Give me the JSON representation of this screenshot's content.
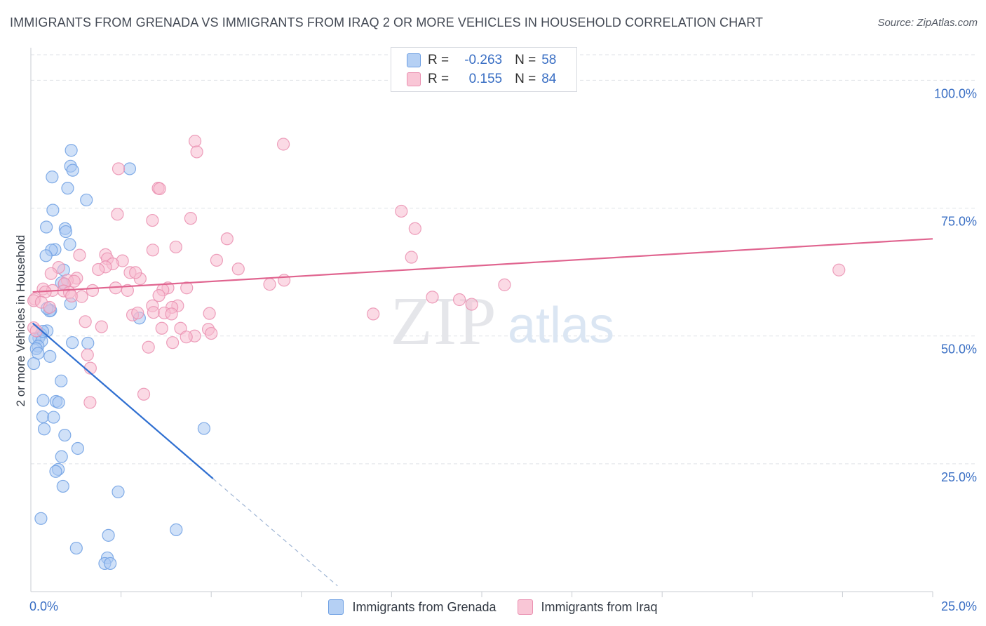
{
  "title": "IMMIGRANTS FROM GRENADA VS IMMIGRANTS FROM IRAQ 2 OR MORE VEHICLES IN HOUSEHOLD CORRELATION CHART",
  "source": "Source: ZipAtlas.com",
  "watermark": {
    "zip": "ZIP",
    "atlas": "atlas"
  },
  "colors": {
    "grenada_fill": "#a9c9f3",
    "grenada_stroke": "#6d9fe3",
    "grenada_line": "#2f6fd1",
    "iraq_fill": "#f7bcd0",
    "iraq_stroke": "#ea8fb0",
    "iraq_line": "#e0648f",
    "axis_label": "#3a6fc4",
    "grid": "#dfe2e7"
  },
  "legend": {
    "rows": [
      {
        "r_label": "R =",
        "r_value": "-0.263",
        "n_label": "N =",
        "n_value": "58"
      },
      {
        "r_label": "R =",
        "r_value": "0.155",
        "n_label": "N =",
        "n_value": "84"
      }
    ]
  },
  "chart_data": {
    "type": "scatter",
    "title": "IMMIGRANTS FROM GRENADA VS IMMIGRANTS FROM IRAQ 2 OR MORE VEHICLES IN HOUSEHOLD CORRELATION CHART",
    "xlabel": "",
    "ylabel": "2 or more Vehicles in Household",
    "xlim": [
      0,
      25
    ],
    "ylim": [
      0,
      105
    ],
    "x_tick_labels": [
      {
        "value": 0,
        "label": "0.0%"
      },
      {
        "value": 25,
        "label": "25.0%"
      }
    ],
    "y_tick_labels": [
      {
        "value": 25,
        "label": "25.0%"
      },
      {
        "value": 50,
        "label": "50.0%"
      },
      {
        "value": 75,
        "label": "75.0%"
      },
      {
        "value": 100,
        "label": "100.0%"
      }
    ],
    "x_minor_ticks": [
      2.5,
      5,
      7.5,
      10,
      12.5,
      15,
      17.5,
      20,
      22.5,
      25
    ],
    "grid": true,
    "legend_position": "top-center",
    "series": [
      {
        "name": "Immigrants from Grenada",
        "r": -0.263,
        "n": 58,
        "trend": {
          "x0": 0.05,
          "y0": 52.5,
          "x1": 5.05,
          "y1": 22.1,
          "dash_to_x": 8.5
        },
        "points": [
          [
            1.12,
            86.3
          ],
          [
            1.1,
            83.2
          ],
          [
            1.16,
            82.4
          ],
          [
            2.74,
            82.7
          ],
          [
            0.59,
            81.1
          ],
          [
            1.02,
            78.9
          ],
          [
            1.54,
            76.6
          ],
          [
            0.61,
            74.6
          ],
          [
            0.43,
            71.3
          ],
          [
            0.95,
            71.0
          ],
          [
            0.97,
            70.4
          ],
          [
            1.08,
            67.9
          ],
          [
            0.67,
            66.9
          ],
          [
            0.57,
            66.8
          ],
          [
            0.42,
            65.7
          ],
          [
            0.91,
            62.9
          ],
          [
            0.92,
            60.1
          ],
          [
            1.1,
            56.3
          ],
          [
            0.55,
            55.0
          ],
          [
            0.52,
            54.9
          ],
          [
            3.01,
            53.5
          ],
          [
            0.45,
            51.0
          ],
          [
            0.28,
            50.3
          ],
          [
            0.22,
            49.6
          ],
          [
            0.11,
            49.5
          ],
          [
            0.3,
            49.0
          ],
          [
            1.15,
            48.7
          ],
          [
            1.58,
            48.6
          ],
          [
            0.2,
            48.0
          ],
          [
            0.15,
            47.5
          ],
          [
            0.2,
            46.6
          ],
          [
            0.53,
            46.0
          ],
          [
            0.08,
            44.6
          ],
          [
            0.84,
            41.2
          ],
          [
            0.34,
            37.4
          ],
          [
            0.7,
            37.2
          ],
          [
            0.77,
            37.0
          ],
          [
            0.33,
            34.2
          ],
          [
            0.63,
            34.1
          ],
          [
            4.8,
            31.9
          ],
          [
            0.37,
            31.8
          ],
          [
            0.94,
            30.6
          ],
          [
            1.3,
            28.0
          ],
          [
            0.85,
            26.4
          ],
          [
            0.76,
            23.9
          ],
          [
            0.69,
            23.5
          ],
          [
            0.89,
            20.6
          ],
          [
            2.42,
            19.5
          ],
          [
            0.28,
            14.3
          ],
          [
            4.03,
            12.1
          ],
          [
            2.15,
            11.0
          ],
          [
            1.26,
            8.5
          ],
          [
            2.12,
            6.6
          ],
          [
            2.05,
            5.5
          ],
          [
            2.2,
            5.5
          ],
          [
            0.85,
            60.4
          ],
          [
            0.45,
            55.4
          ],
          [
            0.33,
            50.9
          ]
        ]
      },
      {
        "name": "Immigrants from Iraq",
        "r": 0.155,
        "n": 84,
        "trend": {
          "x0": 0.05,
          "y0": 58.6,
          "x1": 25.0,
          "y1": 69.0
        },
        "points": [
          [
            4.55,
            88.1
          ],
          [
            7.0,
            87.5
          ],
          [
            4.6,
            86.0
          ],
          [
            2.43,
            82.7
          ],
          [
            3.53,
            78.9
          ],
          [
            3.57,
            78.8
          ],
          [
            10.27,
            74.4
          ],
          [
            2.4,
            73.8
          ],
          [
            4.43,
            73.0
          ],
          [
            3.37,
            72.6
          ],
          [
            10.65,
            71.0
          ],
          [
            5.44,
            69.0
          ],
          [
            4.02,
            67.4
          ],
          [
            3.38,
            66.8
          ],
          [
            2.07,
            65.9
          ],
          [
            1.35,
            65.8
          ],
          [
            2.12,
            65.1
          ],
          [
            10.55,
            65.4
          ],
          [
            5.15,
            64.8
          ],
          [
            2.54,
            64.7
          ],
          [
            2.27,
            64.1
          ],
          [
            0.77,
            63.4
          ],
          [
            2.07,
            63.5
          ],
          [
            5.75,
            63.1
          ],
          [
            1.87,
            63.0
          ],
          [
            22.4,
            62.9
          ],
          [
            2.75,
            62.4
          ],
          [
            0.56,
            62.2
          ],
          [
            1.27,
            61.3
          ],
          [
            3.03,
            61.2
          ],
          [
            1.01,
            60.9
          ],
          [
            7.02,
            60.9
          ],
          [
            1.2,
            60.7
          ],
          [
            0.93,
            60.2
          ],
          [
            6.62,
            60.1
          ],
          [
            13.13,
            60.0
          ],
          [
            3.8,
            59.4
          ],
          [
            4.32,
            59.4
          ],
          [
            0.34,
            59.2
          ],
          [
            2.35,
            59.4
          ],
          [
            3.66,
            59.0
          ],
          [
            0.6,
            58.9
          ],
          [
            0.91,
            58.8
          ],
          [
            1.71,
            58.9
          ],
          [
            2.68,
            58.9
          ],
          [
            0.4,
            58.6
          ],
          [
            1.07,
            58.5
          ],
          [
            1.13,
            57.8
          ],
          [
            1.41,
            57.7
          ],
          [
            3.55,
            57.9
          ],
          [
            11.13,
            57.6
          ],
          [
            0.11,
            57.2
          ],
          [
            0.08,
            56.9
          ],
          [
            11.88,
            57.1
          ],
          [
            0.29,
            56.6
          ],
          [
            12.22,
            56.2
          ],
          [
            3.37,
            55.9
          ],
          [
            4.07,
            55.9
          ],
          [
            0.52,
            55.6
          ],
          [
            3.91,
            55.6
          ],
          [
            2.82,
            54.1
          ],
          [
            3.4,
            54.6
          ],
          [
            3.7,
            54.5
          ],
          [
            3.9,
            54.3
          ],
          [
            2.96,
            54.5
          ],
          [
            9.49,
            54.3
          ],
          [
            4.95,
            54.4
          ],
          [
            1.51,
            52.8
          ],
          [
            1.96,
            51.8
          ],
          [
            3.63,
            51.5
          ],
          [
            4.15,
            51.5
          ],
          [
            4.92,
            51.3
          ],
          [
            0.08,
            51.6
          ],
          [
            0.15,
            51.0
          ],
          [
            4.54,
            50.0
          ],
          [
            4.31,
            49.8
          ],
          [
            3.93,
            48.7
          ],
          [
            3.26,
            47.8
          ],
          [
            1.57,
            46.3
          ],
          [
            1.65,
            43.7
          ],
          [
            3.13,
            38.6
          ],
          [
            1.64,
            37.0
          ],
          [
            5.0,
            50.5
          ],
          [
            2.9,
            62.4
          ]
        ]
      }
    ]
  },
  "bottom_legend": [
    {
      "label": "Immigrants from Grenada"
    },
    {
      "label": "Immigrants from Iraq"
    }
  ]
}
